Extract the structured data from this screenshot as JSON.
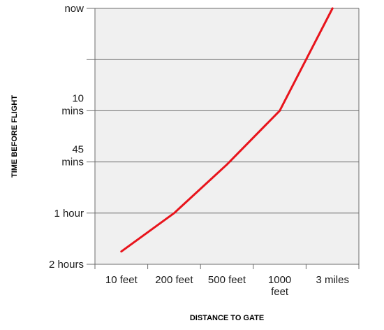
{
  "chart_data": {
    "type": "line",
    "xlabel": "DISTANCE TO GATE",
    "ylabel": "TIME BEFORE FLIGHT",
    "x_categories": [
      {
        "lines": [
          "10 feet"
        ]
      },
      {
        "lines": [
          "200 feet"
        ]
      },
      {
        "lines": [
          "500 feet"
        ]
      },
      {
        "lines": [
          "1000",
          "feet"
        ]
      },
      {
        "lines": [
          "3 miles"
        ]
      }
    ],
    "y_levels": [
      {
        "lines": [
          "2 hours"
        ]
      },
      {
        "lines": [
          "1 hour"
        ]
      },
      {
        "lines": [
          "45",
          "mins"
        ]
      },
      {
        "lines": [
          "10",
          "mins"
        ]
      },
      {
        "lines": [
          ""
        ]
      },
      {
        "lines": [
          "now"
        ]
      }
    ],
    "series": [
      {
        "color": "#e8141c",
        "points": [
          {
            "x": 0.0,
            "y": 0.25
          },
          {
            "x": 1.0,
            "y": 1.0
          },
          {
            "x": 2.0,
            "y": 1.95
          },
          {
            "x": 3.0,
            "y": 3.0
          },
          {
            "x": 3.5,
            "y": 4.0
          },
          {
            "x": 4.0,
            "y": 5.0
          }
        ]
      }
    ],
    "plot_background": "#f0f0f0",
    "grid": "horizontal"
  }
}
